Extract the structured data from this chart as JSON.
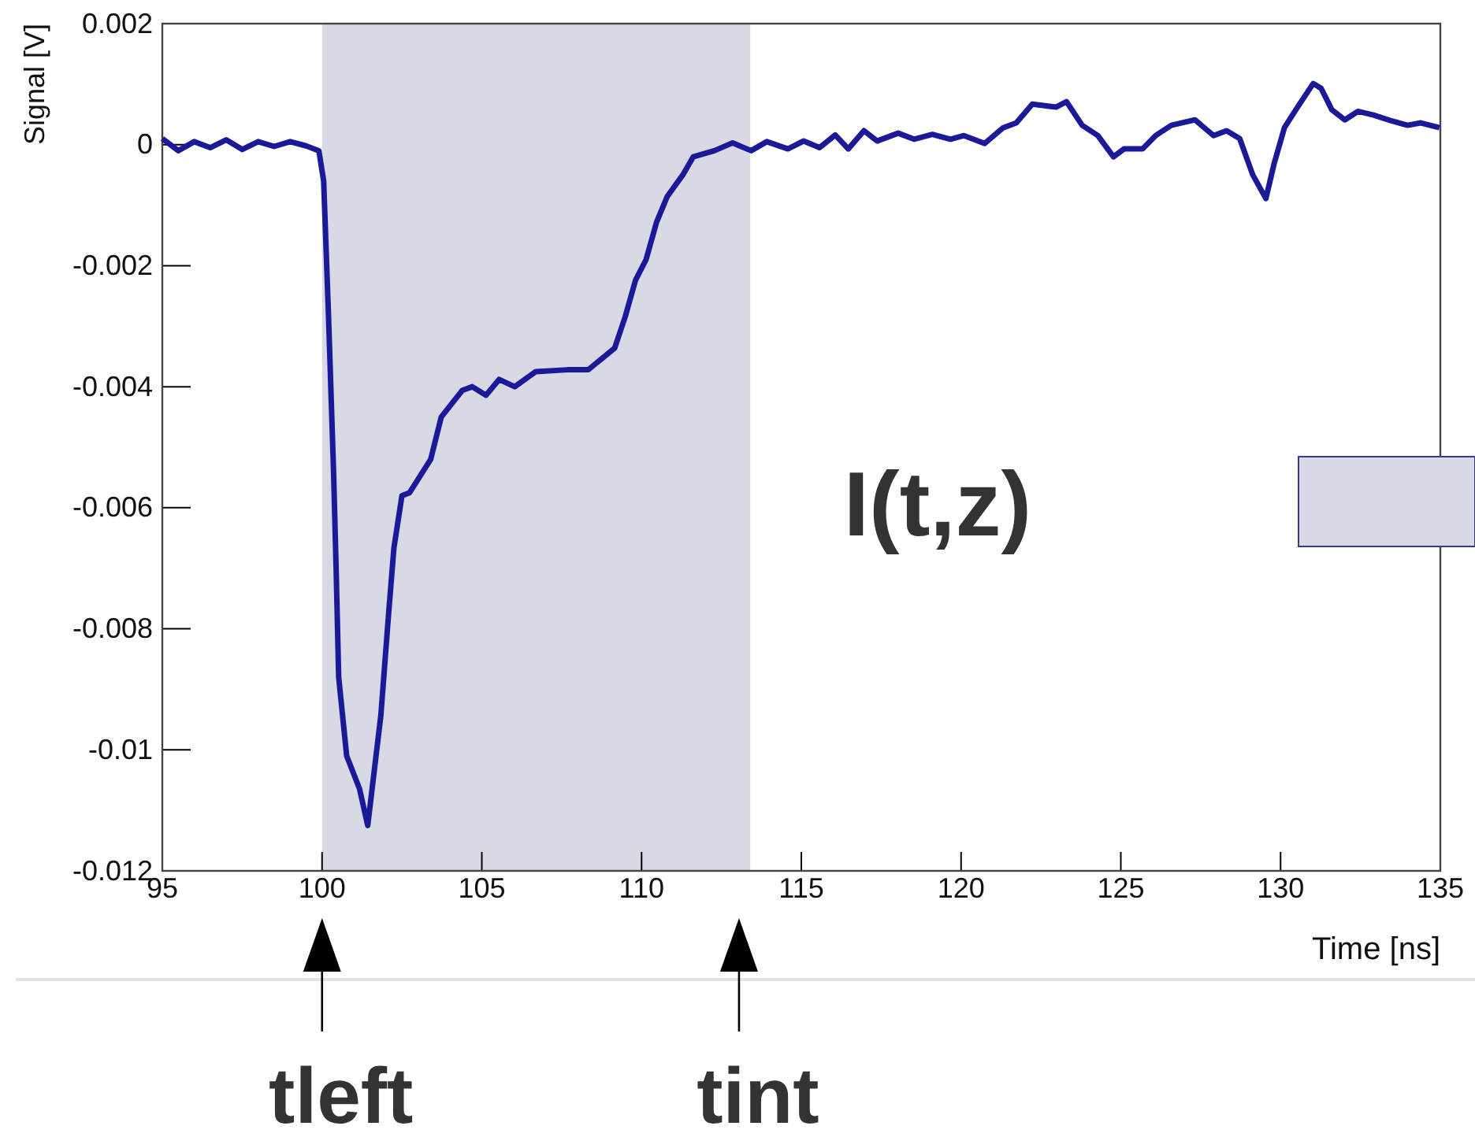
{
  "chart_data": {
    "type": "line",
    "xlabel": "Time [ns]",
    "ylabel": "Signal [V]",
    "xlim": [
      95,
      135
    ],
    "xticks": [
      95,
      100,
      105,
      110,
      115,
      120,
      125,
      130,
      135
    ],
    "ylim": [
      -0.012,
      0.002
    ],
    "yticks": [
      -0.012,
      -0.01,
      -0.008,
      -0.006,
      -0.004,
      -0.002,
      0,
      0.002
    ],
    "grid": false,
    "marker": "none",
    "line_style": "solid",
    "bands": [
      {
        "axis": "x",
        "from": 100,
        "to": 113.4,
        "color": "#d9d9e6"
      }
    ],
    "annotations": [
      "I(t,z)",
      {
        "text": "tleft",
        "x": 100,
        "y": -0.012
      },
      {
        "text": "tint",
        "x": 113.05,
        "y": -0.012
      }
    ],
    "series": [
      {
        "color": "#1a1a99",
        "x": [
          95,
          95.5,
          96,
          96.5,
          97,
          97.5,
          98,
          98.5,
          99,
          99.5,
          99.9,
          100.05,
          100.2,
          100.36,
          100.44,
          100.52,
          100.77,
          101.17,
          101.43,
          101.84,
          102.09,
          102.25,
          102.5,
          102.74,
          103.4,
          103.73,
          104.39,
          104.7,
          105.13,
          105.54,
          106.03,
          106.69,
          107.68,
          108.33,
          109.16,
          109.49,
          109.81,
          110.14,
          110.47,
          110.8,
          111.29,
          111.62,
          112.28,
          112.85,
          113.43,
          113.92,
          114.58,
          115.07,
          115.57,
          116.06,
          116.47,
          116.96,
          117.37,
          118.03,
          118.53,
          119.1,
          119.67,
          120.09,
          120.74,
          121.32,
          121.73,
          122.23,
          122.97,
          123.3,
          123.79,
          124.28,
          124.77,
          125.1,
          125.68,
          126.09,
          126.58,
          127.32,
          127.9,
          128.31,
          128.72,
          129.13,
          129.54,
          129.79,
          130.12,
          130.53,
          131.02,
          131.27,
          131.6,
          132.01,
          132.42,
          132.91,
          133.49,
          133.98,
          134.39,
          134.97
        ],
        "values": [
          0.0001,
          -0.0001,
          5e-05,
          -5e-05,
          8e-05,
          -8e-05,
          5e-05,
          -3e-05,
          5e-05,
          -2e-05,
          -0.0001,
          -0.0006,
          -0.0028,
          -0.0054,
          -0.007,
          -0.0088,
          -0.0101,
          -0.01064,
          -0.01125,
          -0.00943,
          -0.0077,
          -0.00666,
          -0.0058,
          -0.00575,
          -0.0052,
          -0.0045,
          -0.00406,
          -0.004,
          -0.00414,
          -0.00388,
          -0.004,
          -0.00375,
          -0.00372,
          -0.00372,
          -0.00336,
          -0.00284,
          -0.00224,
          -0.0019,
          -0.00128,
          -0.00086,
          -0.0005,
          -0.0002,
          -0.0001,
          3e-05,
          -0.0001,
          5e-05,
          -7e-05,
          6e-05,
          -5e-05,
          0.00016,
          -7e-05,
          0.00023,
          6e-05,
          0.00019,
          9e-05,
          0.00017,
          9e-05,
          0.00015,
          2e-05,
          0.00028,
          0.00036,
          0.00067,
          0.00062,
          0.00071,
          0.00032,
          0.00015,
          -0.0002,
          -7e-05,
          -7e-05,
          0.00015,
          0.00032,
          0.00041,
          0.00015,
          0.00023,
          0.0001,
          -0.0005,
          -0.00089,
          -0.00033,
          0.00028,
          0.00062,
          0.00101,
          0.00093,
          0.00058,
          0.00041,
          0.00055,
          0.00049,
          0.00039,
          0.00032,
          0.00036,
          0.00028
        ]
      }
    ]
  }
}
